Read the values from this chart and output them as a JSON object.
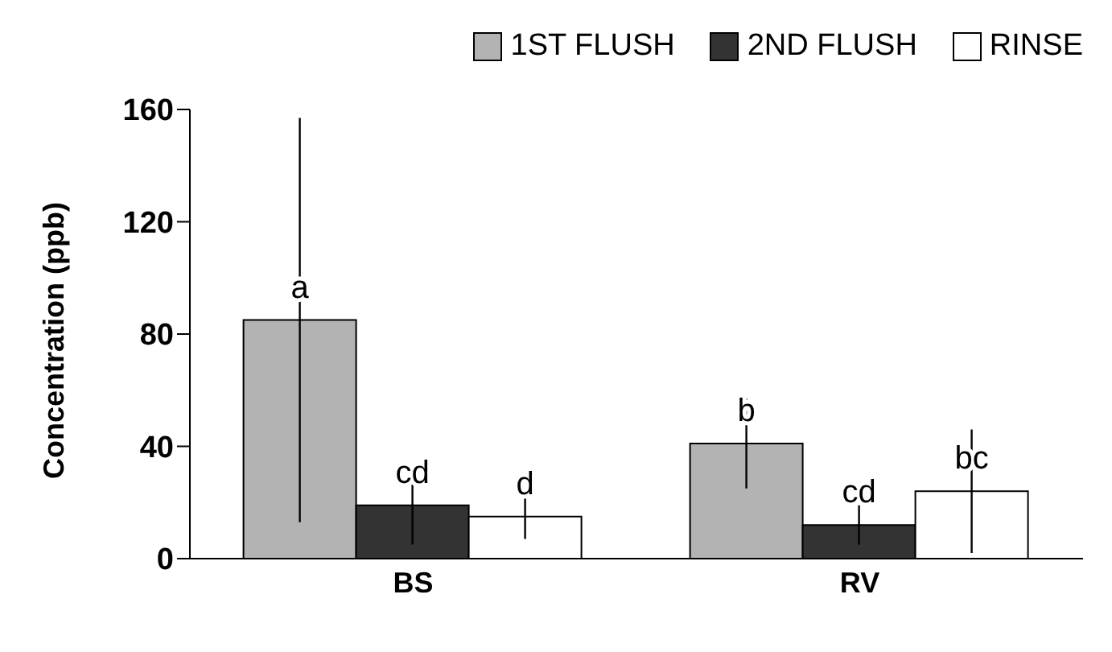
{
  "chart_data": {
    "type": "bar",
    "ylabel": "Concentration (ppb)",
    "categories": [
      "BS",
      "RV"
    ],
    "series": [
      {
        "name": "1ST FLUSH",
        "color": "#b3b3b3",
        "values": [
          85,
          41
        ],
        "errors": [
          72,
          16
        ],
        "value_labels": [
          "a",
          "b"
        ]
      },
      {
        "name": "2ND FLUSH",
        "color": "#333333",
        "values": [
          19,
          12
        ],
        "errors": [
          14,
          7
        ],
        "value_labels": [
          "cd",
          "cd"
        ]
      },
      {
        "name": "RINSE",
        "color": "#ffffff",
        "values": [
          15,
          24
        ],
        "errors": [
          8,
          22
        ],
        "value_labels": [
          "d",
          "bc"
        ]
      }
    ],
    "ylim": [
      0,
      160
    ],
    "yticks": [
      0,
      40,
      80,
      120,
      160
    ],
    "grid": false,
    "legend": "top"
  }
}
